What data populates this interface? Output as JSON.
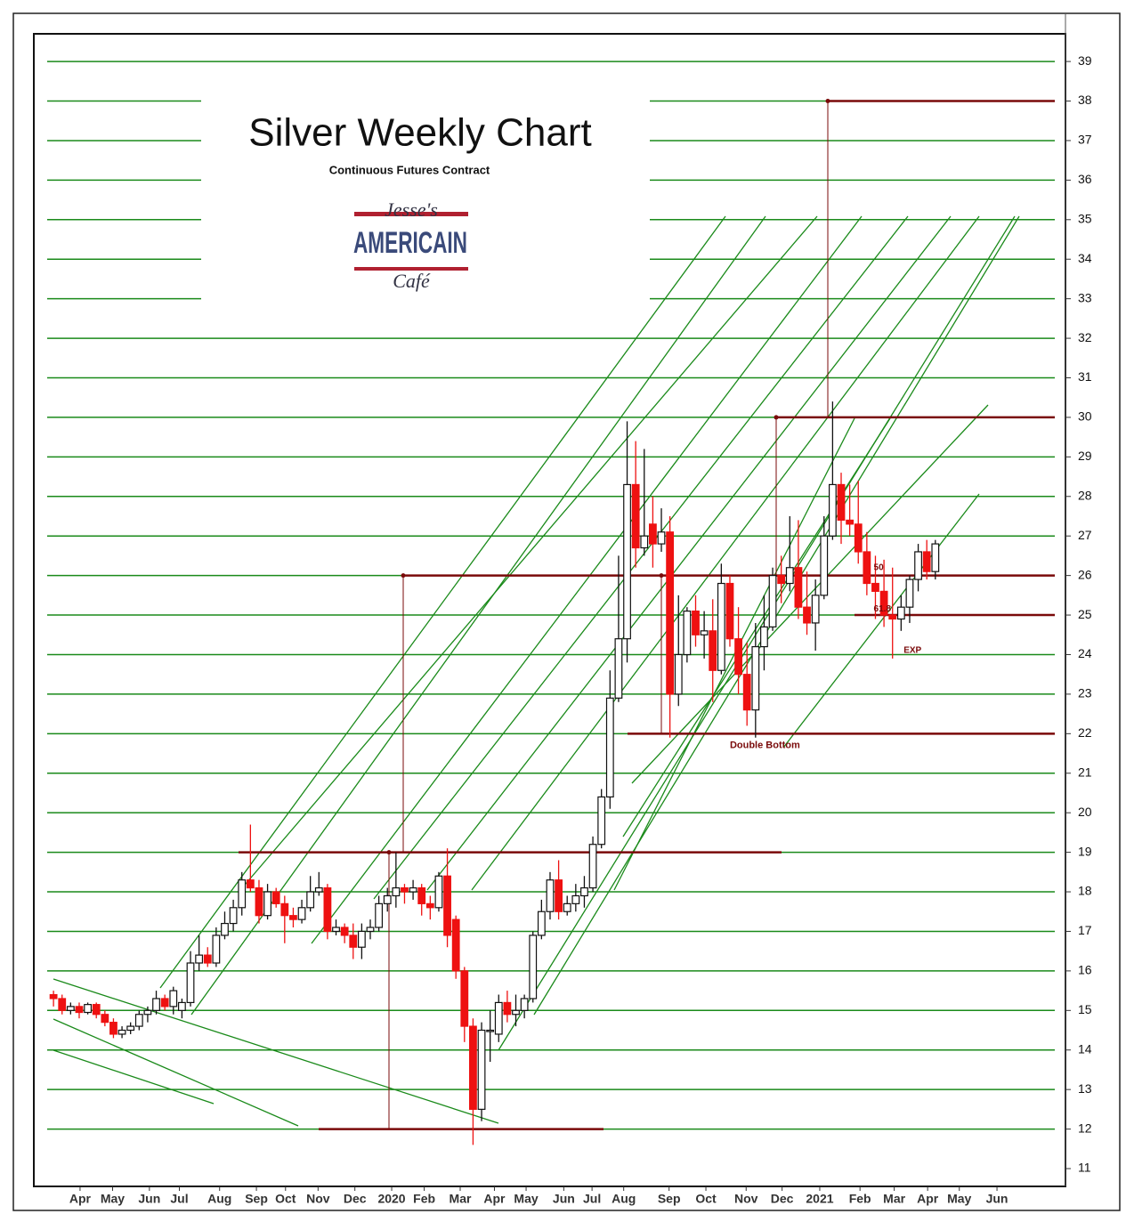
{
  "chart_data": {
    "type": "candlestick",
    "title": "Silver Weekly Chart",
    "subtitle": "Continuous Futures Contract",
    "logo": {
      "top": "Jesse's",
      "middle": "AMERICAIN",
      "bottom": "Café"
    },
    "ylim": [
      10.55,
      39.7
    ],
    "yticks": [
      11,
      12,
      13,
      14,
      15,
      16,
      17,
      18,
      19,
      20,
      21,
      22,
      23,
      24,
      25,
      26,
      27,
      28,
      29,
      30,
      31,
      32,
      33,
      34,
      35,
      36,
      37,
      38,
      39
    ],
    "xlim": [
      -2.3,
      118.2
    ],
    "xticks": [
      {
        "value": 3.1,
        "label": "Apr"
      },
      {
        "value": 6.9,
        "label": "May"
      },
      {
        "value": 11.2,
        "label": "Jun"
      },
      {
        "value": 14.7,
        "label": "Jul"
      },
      {
        "value": 19.4,
        "label": "Aug"
      },
      {
        "value": 23.7,
        "label": "Sep"
      },
      {
        "value": 27.1,
        "label": "Oct"
      },
      {
        "value": 30.9,
        "label": "Nov"
      },
      {
        "value": 35.2,
        "label": "Dec"
      },
      {
        "value": 39.5,
        "label": "2020"
      },
      {
        "value": 43.3,
        "label": "Feb"
      },
      {
        "value": 47.5,
        "label": "Mar"
      },
      {
        "value": 51.5,
        "label": "Apr"
      },
      {
        "value": 55.2,
        "label": "May"
      },
      {
        "value": 59.6,
        "label": "Jun"
      },
      {
        "value": 62.9,
        "label": "Jul"
      },
      {
        "value": 66.6,
        "label": "Aug"
      },
      {
        "value": 71.9,
        "label": "Sep"
      },
      {
        "value": 76.2,
        "label": "Oct"
      },
      {
        "value": 80.9,
        "label": "Nov"
      },
      {
        "value": 85.1,
        "label": "Dec"
      },
      {
        "value": 89.5,
        "label": "2021"
      },
      {
        "value": 94.2,
        "label": "Feb"
      },
      {
        "value": 98.2,
        "label": "Mar"
      },
      {
        "value": 102.1,
        "label": "Apr"
      },
      {
        "value": 105.8,
        "label": "May"
      },
      {
        "value": 110.2,
        "label": "Jun"
      }
    ],
    "grid": true,
    "grid_color": "#1a8a1a",
    "up_color": "#ffffff",
    "down_color": "#ee1111",
    "level_color": "#7a0a0a",
    "levels": [
      38,
      30,
      26,
      25,
      22,
      19,
      12
    ],
    "annotations": [
      {
        "text": "Double Bottom",
        "x": 79,
        "y": 21.7
      },
      {
        "text": "50",
        "x": 95.8,
        "y": 26.2
      },
      {
        "text": "61.8",
        "x": 95.8,
        "y": 25.15
      },
      {
        "text": "EXP",
        "x": 99.3,
        "y": 24.1
      }
    ],
    "ohlc": [
      [
        15.4,
        15.5,
        15.1,
        15.3
      ],
      [
        15.3,
        15.4,
        14.9,
        15.0
      ],
      [
        15.0,
        15.2,
        14.9,
        15.1
      ],
      [
        15.1,
        15.2,
        14.8,
        14.95
      ],
      [
        14.95,
        15.2,
        14.9,
        15.15
      ],
      [
        15.15,
        15.2,
        14.8,
        14.9
      ],
      [
        14.9,
        15.0,
        14.6,
        14.7
      ],
      [
        14.7,
        14.8,
        14.3,
        14.4
      ],
      [
        14.4,
        14.6,
        14.3,
        14.5
      ],
      [
        14.5,
        14.7,
        14.4,
        14.6
      ],
      [
        14.6,
        15.0,
        14.5,
        14.9
      ],
      [
        14.9,
        15.1,
        14.7,
        15.0
      ],
      [
        15.0,
        15.5,
        14.9,
        15.3
      ],
      [
        15.3,
        15.4,
        15.0,
        15.1
      ],
      [
        15.1,
        15.6,
        14.9,
        15.5
      ],
      [
        15.0,
        15.3,
        14.8,
        15.2
      ],
      [
        15.2,
        16.5,
        15.1,
        16.2
      ],
      [
        16.2,
        16.9,
        16.0,
        16.4
      ],
      [
        16.4,
        16.6,
        16.1,
        16.2
      ],
      [
        16.2,
        17.1,
        16.1,
        16.9
      ],
      [
        16.9,
        17.5,
        16.8,
        17.2
      ],
      [
        17.2,
        17.8,
        17.0,
        17.6
      ],
      [
        17.6,
        18.5,
        17.4,
        18.3
      ],
      [
        18.3,
        19.7,
        18.0,
        18.1
      ],
      [
        18.1,
        18.3,
        17.2,
        17.4
      ],
      [
        17.4,
        18.2,
        17.3,
        18.0
      ],
      [
        18.0,
        18.1,
        17.6,
        17.7
      ],
      [
        17.7,
        17.9,
        16.7,
        17.4
      ],
      [
        17.4,
        17.6,
        17.1,
        17.3
      ],
      [
        17.3,
        17.8,
        17.2,
        17.6
      ],
      [
        17.6,
        18.4,
        17.5,
        18.0
      ],
      [
        18.0,
        18.5,
        17.9,
        18.1
      ],
      [
        18.1,
        18.2,
        16.8,
        17.0
      ],
      [
        17.0,
        17.3,
        16.9,
        17.1
      ],
      [
        17.1,
        17.2,
        16.7,
        16.9
      ],
      [
        16.9,
        17.2,
        16.3,
        16.6
      ],
      [
        16.6,
        17.2,
        16.3,
        17.0
      ],
      [
        17.0,
        17.3,
        16.8,
        17.1
      ],
      [
        17.1,
        17.9,
        17.0,
        17.7
      ],
      [
        17.7,
        18.1,
        17.5,
        17.9
      ],
      [
        17.9,
        19.0,
        17.6,
        18.1
      ],
      [
        18.1,
        18.2,
        17.7,
        18.0
      ],
      [
        18.0,
        18.3,
        17.8,
        18.1
      ],
      [
        18.1,
        18.2,
        17.4,
        17.7
      ],
      [
        17.7,
        17.9,
        17.3,
        17.6
      ],
      [
        17.6,
        18.5,
        17.5,
        18.4
      ],
      [
        18.4,
        19.1,
        16.6,
        16.9
      ],
      [
        17.3,
        17.4,
        15.8,
        16.0
      ],
      [
        16.0,
        16.1,
        14.2,
        14.6
      ],
      [
        14.6,
        14.8,
        11.6,
        12.5
      ],
      [
        12.5,
        14.7,
        12.2,
        14.5
      ],
      [
        14.5,
        15.0,
        13.7,
        14.5
      ],
      [
        14.4,
        15.4,
        14.2,
        15.2
      ],
      [
        15.2,
        15.5,
        14.7,
        14.9
      ],
      [
        14.9,
        15.4,
        14.6,
        15.0
      ],
      [
        15.0,
        15.4,
        14.8,
        15.3
      ],
      [
        15.3,
        17.0,
        15.2,
        16.9
      ],
      [
        16.9,
        17.8,
        16.8,
        17.5
      ],
      [
        17.5,
        18.5,
        17.3,
        18.3
      ],
      [
        18.3,
        18.8,
        17.3,
        17.5
      ],
      [
        17.5,
        17.9,
        17.4,
        17.7
      ],
      [
        17.7,
        18.2,
        17.5,
        17.9
      ],
      [
        17.9,
        18.4,
        17.6,
        18.1
      ],
      [
        18.1,
        19.4,
        18.0,
        19.2
      ],
      [
        19.2,
        20.6,
        19.1,
        20.4
      ],
      [
        20.4,
        23.6,
        20.1,
        22.9
      ],
      [
        22.9,
        26.5,
        22.8,
        24.4
      ],
      [
        24.4,
        29.9,
        23.8,
        28.3
      ],
      [
        28.3,
        29.4,
        26.2,
        26.7
      ],
      [
        26.7,
        29.2,
        26.5,
        27.0
      ],
      [
        27.3,
        28.0,
        26.2,
        26.8
      ],
      [
        26.8,
        27.7,
        26.6,
        27.1
      ],
      [
        27.1,
        27.5,
        21.9,
        23.0
      ],
      [
        23.0,
        25.5,
        22.7,
        24.0
      ],
      [
        24.0,
        25.2,
        23.8,
        25.1
      ],
      [
        25.1,
        25.5,
        24.2,
        24.5
      ],
      [
        24.5,
        25.1,
        23.9,
        24.6
      ],
      [
        24.6,
        25.4,
        22.8,
        23.6
      ],
      [
        23.6,
        26.3,
        23.5,
        25.8
      ],
      [
        25.8,
        26.0,
        24.2,
        24.4
      ],
      [
        24.4,
        25.2,
        23.0,
        23.5
      ],
      [
        23.5,
        24.3,
        22.2,
        22.6
      ],
      [
        22.6,
        24.8,
        21.9,
        24.2
      ],
      [
        24.2,
        25.5,
        23.6,
        24.7
      ],
      [
        24.7,
        26.2,
        24.6,
        26.0
      ],
      [
        26.0,
        26.5,
        25.3,
        25.8
      ],
      [
        25.8,
        27.5,
        25.6,
        26.2
      ],
      [
        26.2,
        27.4,
        24.9,
        25.2
      ],
      [
        25.2,
        26.1,
        24.5,
        24.8
      ],
      [
        24.8,
        25.9,
        24.1,
        25.5
      ],
      [
        25.5,
        27.5,
        25.4,
        27.0
      ],
      [
        27.0,
        30.4,
        26.9,
        28.3
      ],
      [
        28.3,
        28.6,
        26.8,
        27.4
      ],
      [
        27.4,
        28.3,
        27.0,
        27.3
      ],
      [
        27.3,
        28.4,
        26.3,
        26.6
      ],
      [
        26.6,
        27.1,
        25.5,
        25.8
      ],
      [
        25.8,
        26.5,
        24.9,
        25.6
      ],
      [
        25.6,
        26.4,
        24.7,
        25.0
      ],
      [
        25.0,
        26.2,
        23.9,
        24.9
      ],
      [
        24.9,
        25.5,
        24.6,
        25.2
      ],
      [
        25.2,
        26.0,
        24.8,
        25.9
      ],
      [
        25.9,
        26.8,
        25.6,
        26.6
      ],
      [
        26.6,
        26.9,
        25.9,
        26.1
      ],
      [
        26.1,
        26.9,
        25.9,
        26.8
      ]
    ]
  }
}
